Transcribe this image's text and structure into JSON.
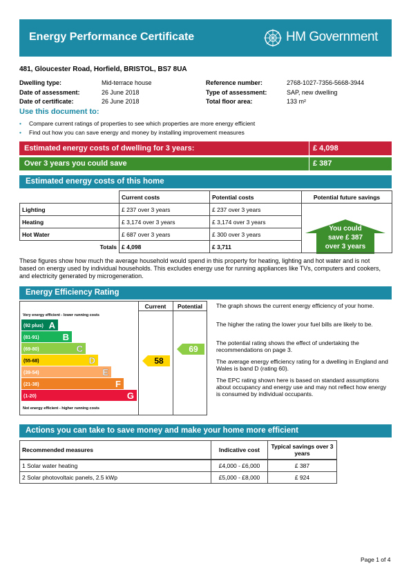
{
  "header": {
    "title": "Energy Performance Certificate",
    "government": "HM Government"
  },
  "address": "481, Gloucester Road, Horfield, BRISTOL, BS7 8UA",
  "details": [
    [
      "Dwelling type:",
      "Mid-terrace house",
      "Reference number:",
      "2768-1027-7356-5668-3944"
    ],
    [
      "Date of assessment:",
      "26   June   2018",
      "Type of assessment:",
      "SAP, new dwelling"
    ],
    [
      "Date of certificate:",
      "26   June   2018",
      "Total floor area:",
      "133 m²"
    ]
  ],
  "use": {
    "heading": "Use this document to:",
    "bullets": [
      "Compare current ratings of properties to see which properties are more energy efficient",
      "Find out how you can save energy and money by installing improvement measures"
    ]
  },
  "summary": {
    "cost_label": "Estimated energy costs of dwelling for 3 years:",
    "cost": "£ 4,098",
    "save_label": "Over 3 years you could save",
    "save": "£ 387"
  },
  "costs": {
    "heading": "Estimated energy costs of this home",
    "columns": [
      "Current costs",
      "Potential costs",
      "Potential future savings"
    ],
    "rows": [
      [
        "Lighting",
        "£ 237 over 3 years",
        "£ 237 over 3 years"
      ],
      [
        "Heating",
        "£ 3,174 over 3 years",
        "£ 3,174 over 3 years"
      ],
      [
        "Hot Water",
        "£ 687 over 3 years",
        "£ 300 over 3 years"
      ]
    ],
    "totals_label": "Totals",
    "totals": [
      "£ 4,098",
      "£ 3,711"
    ],
    "savings_arrow": [
      "You could",
      "save £ 387",
      "over 3 years"
    ]
  },
  "note": "These figures show how much the average household would spend in this property for heating, lighting and hot water and is not based on energy used by individual households. This excludes energy use for running appliances like TVs, computers and cookers, and electricity generated by microgeneration.",
  "rating": {
    "heading": "Energy Efficiency Rating",
    "columns": [
      "Current",
      "Potential"
    ],
    "top_label": "Very energy efficient - lower running costs",
    "bottom_label": "Not energy efficient - higher running costs",
    "bands": [
      [
        "(92 plus)",
        "A"
      ],
      [
        "(81-91)",
        "B"
      ],
      [
        "(69-80)",
        "C"
      ],
      [
        "(55-68)",
        "D"
      ],
      [
        "(39-54)",
        "E"
      ],
      [
        "(21-38)",
        "F"
      ],
      [
        "(1-20)",
        "G"
      ]
    ],
    "current": 58,
    "potential": 69,
    "notes": [
      "The graph shows the current energy efficiency of your home.",
      "The higher the rating the lower your fuel bills are likely to be.",
      "The potential rating shows the effect of undertaking the recommendations on page 3.",
      "The average energy efficiency rating for a dwelling in England and Wales is band D (rating 60).",
      "The EPC rating shown here is based on standard assumptions about occupancy and energy use and may not reflect how energy is consumed by individual occupants."
    ]
  },
  "actions": {
    "heading": "Actions you can take to save money and make your home more efficient",
    "columns": [
      "Recommended measures",
      "Indicative cost",
      "Typical savings over 3 years"
    ],
    "rows": [
      [
        "1  Solar water heating",
        "£4,000 - £6,000",
        "£ 387"
      ],
      [
        "2  Solar photovoltaic panels, 2.5 kWp",
        "£5,000 - £8,000",
        "£ 924"
      ]
    ]
  },
  "footer": "Page 1 of 4"
}
